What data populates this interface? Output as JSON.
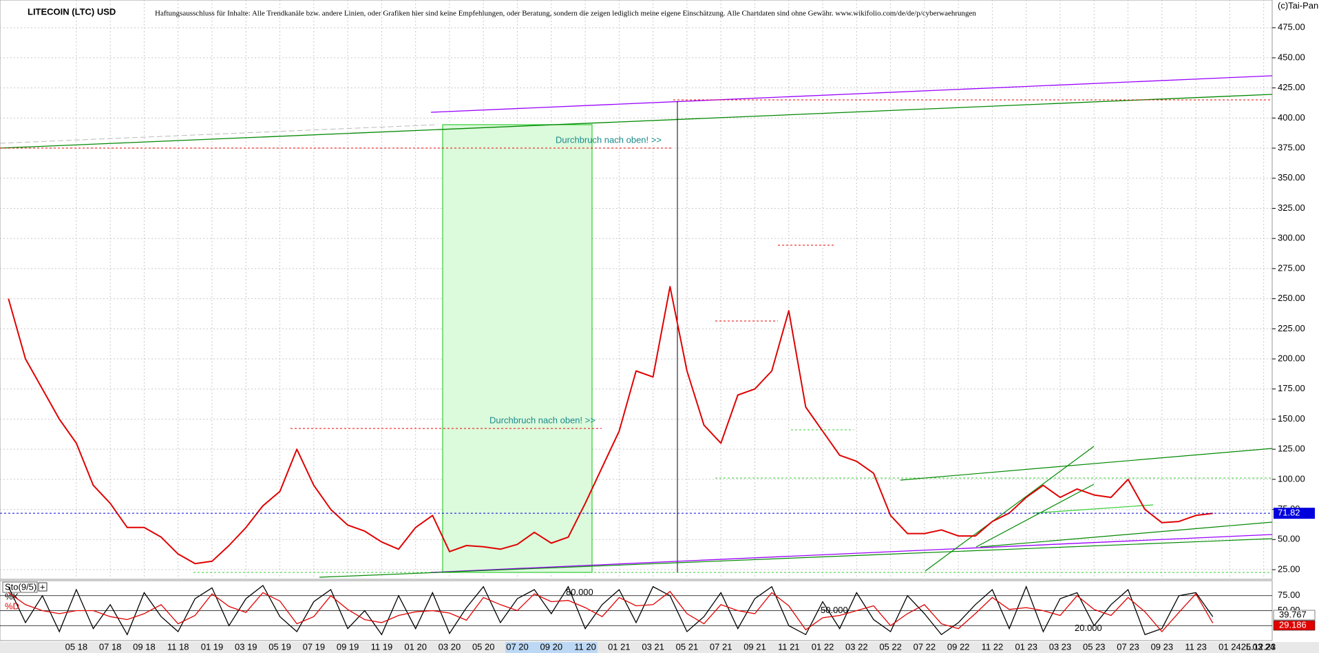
{
  "chart_data": {
    "type": "line",
    "title": "LITECOIN (LTC) USD",
    "subtitle": "Haftungsausschluss für Inhalte: Alle Trendkanäle bzw. andere Linien, oder Grafiken hier sind keine Empfehlungen, oder Beratung, sondern die zeigen lediglich meine eigene Einschätzung. Alle Chartdaten sind ohne Gewähr.  www.wikifolio.com/de/de/p/cyberwaehrungen",
    "copyright": "(c)Tai-Pan",
    "annotations": [
      "Durchbruch nach oben! >>",
      "Durchbruch nach oben! >>"
    ],
    "date_label": "25.12.23",
    "scale_mark": "L",
    "categories": [
      null,
      null,
      null,
      null,
      "05 18",
      null,
      "07 18",
      null,
      "09 18",
      null,
      "11 18",
      null,
      "01 19",
      null,
      "03 19",
      null,
      "05 19",
      null,
      "07 19",
      null,
      "09 19",
      null,
      "11 19",
      null,
      "01 20",
      null,
      "03 20",
      null,
      "05 20",
      null,
      "07 20",
      null,
      "09 20",
      null,
      "11 20",
      null,
      "01 21",
      null,
      "03 21",
      null,
      "05 21",
      null,
      "07 21",
      null,
      "09 21",
      null,
      "11 21",
      null,
      "01 22",
      null,
      "03 22",
      null,
      "05 22",
      null,
      "07 22",
      null,
      "09 22",
      null,
      "11 22",
      null,
      "01 23",
      null,
      "03 23",
      null,
      "05 23",
      null,
      "07 23",
      null,
      "09 23",
      null,
      "11 23",
      null,
      "01 24",
      null,
      "03 24"
    ],
    "values": [
      250,
      200,
      175,
      150,
      130,
      95,
      80,
      60,
      60,
      52,
      38,
      30,
      32,
      45,
      60,
      78,
      90,
      125,
      95,
      75,
      62,
      57,
      48,
      42,
      60,
      70,
      40,
      45,
      44,
      42,
      46,
      56,
      47,
      52,
      80,
      110,
      140,
      190,
      185,
      260,
      190,
      145,
      130,
      170,
      175,
      190,
      240,
      160,
      140,
      120,
      115,
      105,
      70,
      55,
      55,
      58,
      53,
      53,
      65,
      72,
      85,
      95,
      85,
      92,
      87,
      85,
      100,
      75,
      64,
      65,
      70,
      71.82,
      null,
      null,
      null
    ],
    "color": "#e00000",
    "current": 71.82,
    "current_color": "#0000dd",
    "ylim": [
      17,
      498
    ],
    "yticks": [
      {
        "value": 25,
        "label": "25.00"
      },
      {
        "value": 50,
        "label": "50.00"
      },
      {
        "value": 75,
        "label": "75.00"
      },
      {
        "value": 100,
        "label": "100.00"
      },
      {
        "value": 125,
        "label": "125.00"
      },
      {
        "value": 150,
        "label": "150.00"
      },
      {
        "value": 175,
        "label": "175.00"
      },
      {
        "value": 200,
        "label": "200.00"
      },
      {
        "value": 225,
        "label": "225.00"
      },
      {
        "value": 250,
        "label": "250.00"
      },
      {
        "value": 275,
        "label": "275.00"
      },
      {
        "value": 300,
        "label": "300.00"
      },
      {
        "value": 325,
        "label": "325.00"
      },
      {
        "value": 350,
        "label": "350.00"
      },
      {
        "value": 375,
        "label": "375.00"
      },
      {
        "value": 400,
        "label": "400.00"
      },
      {
        "value": 425,
        "label": "425.00"
      },
      {
        "value": 450,
        "label": "450.00"
      },
      {
        "value": 475,
        "label": "475.00"
      }
    ],
    "grid": true,
    "oscillator": {
      "title": "Sto(9/5)",
      "ylim": [
        0,
        100
      ],
      "levels": [
        {
          "value": 80,
          "label": "80.000"
        },
        {
          "value": 50,
          "label": "50.000"
        },
        {
          "value": 20,
          "label": "20.000"
        }
      ],
      "yticks": [
        {
          "value": 75,
          "label": "75.00"
        },
        {
          "value": 50,
          "label": "50.00"
        },
        {
          "value": 25,
          "label": "25.00"
        }
      ],
      "series": [
        {
          "name": "%K",
          "color": "#000000",
          "values": [
            90,
            30,
            75,
            15,
            85,
            20,
            60,
            10,
            80,
            40,
            15,
            70,
            88,
            25,
            70,
            92,
            40,
            15,
            65,
            85,
            20,
            50,
            10,
            75,
            20,
            80,
            12,
            55,
            90,
            30,
            70,
            85,
            45,
            90,
            20,
            60,
            85,
            30,
            90,
            75,
            15,
            40,
            80,
            20,
            70,
            90,
            25,
            10,
            65,
            20,
            80,
            35,
            15,
            75,
            45,
            10,
            30,
            60,
            85,
            20,
            90,
            15,
            70,
            80,
            25,
            60,
            85,
            10,
            20,
            75,
            80,
            39.767,
            null,
            null,
            null
          ]
        },
        {
          "name": "%D",
          "color": "#e00000",
          "values": [
            80,
            60,
            50,
            45,
            50,
            50,
            40,
            35,
            45,
            60,
            28,
            42,
            78,
            57,
            47,
            80,
            66,
            28,
            40,
            75,
            52,
            35,
            30,
            42,
            48,
            50,
            46,
            34,
            72,
            60,
            50,
            78,
            65,
            67,
            55,
            40,
            72,
            58,
            60,
            82,
            45,
            28,
            60,
            50,
            45,
            80,
            58,
            18,
            38,
            42,
            50,
            58,
            25,
            45,
            60,
            28,
            20,
            45,
            72,
            52,
            55,
            50,
            42,
            75,
            52,
            42,
            72,
            48,
            15,
            47,
            78,
            29.186,
            null,
            null,
            null
          ]
        }
      ]
    }
  }
}
